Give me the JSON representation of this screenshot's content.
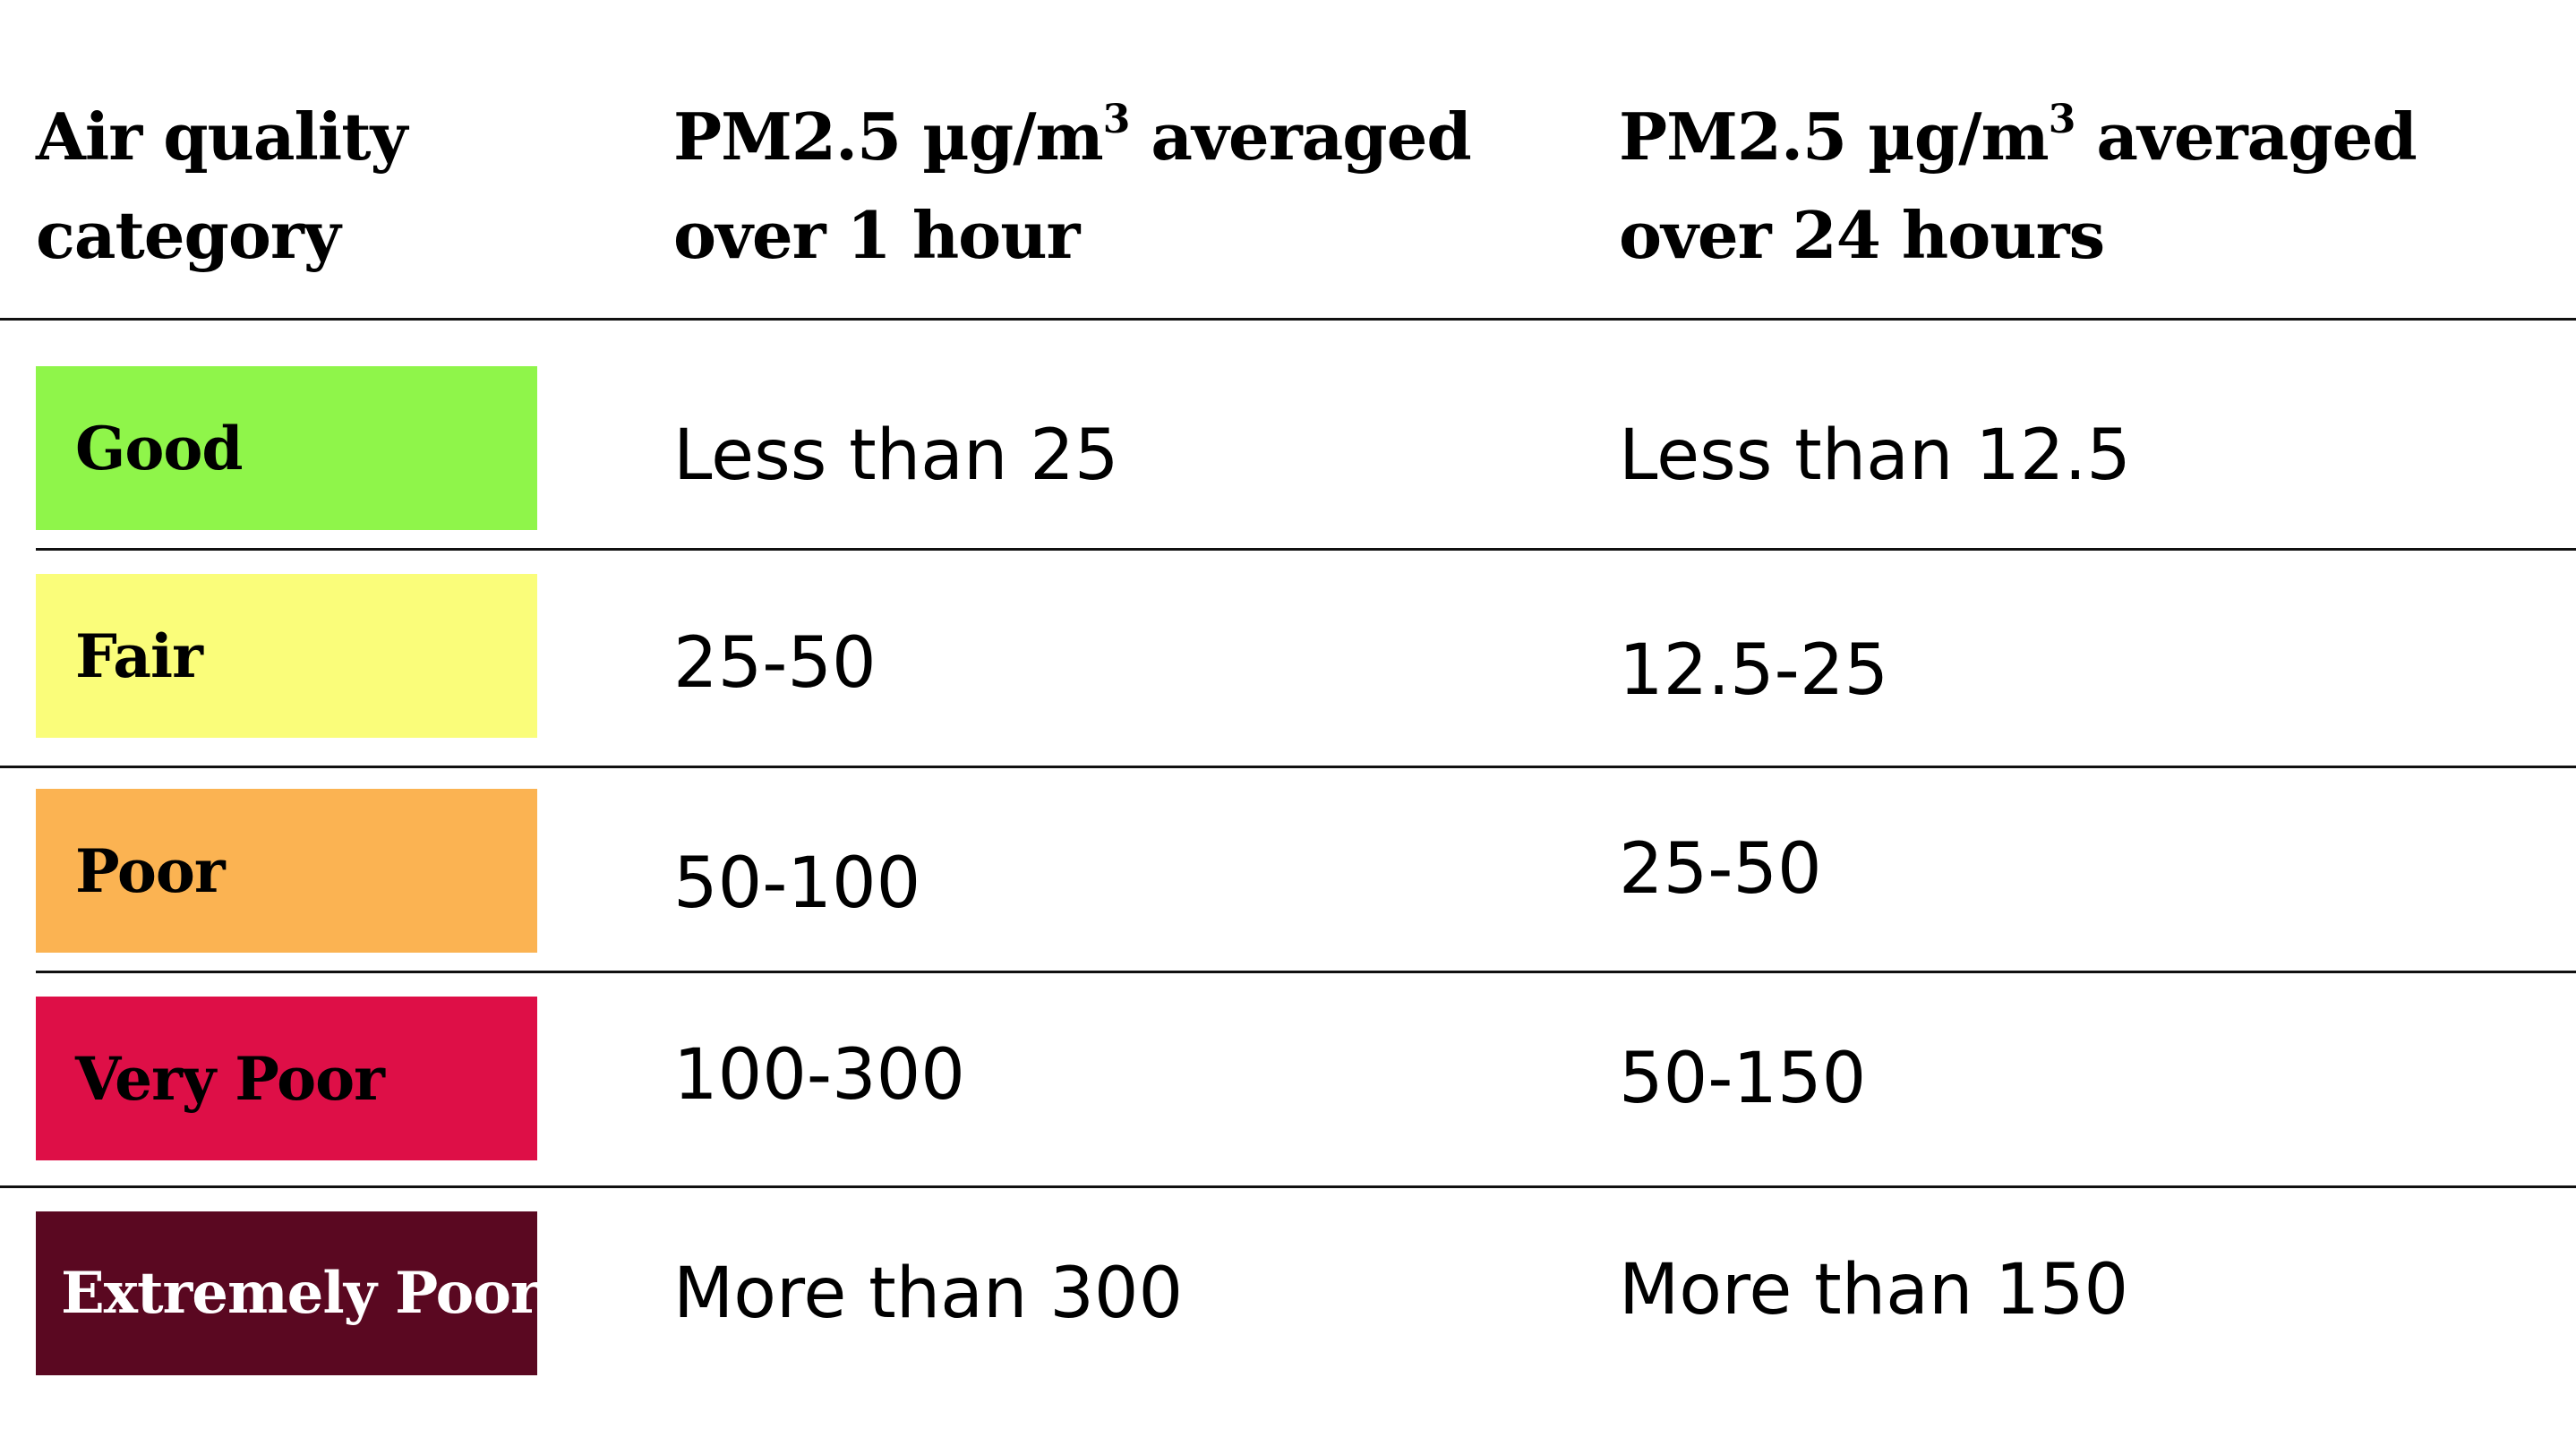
{
  "table": {
    "headers": [
      {
        "line1": "Air quality",
        "line2": "category"
      },
      {
        "line1_pre": "PM2.5 µg/m",
        "sup": "3",
        "line1_post": " averaged",
        "line2": "over 1 hour"
      },
      {
        "line1_pre": "PM2.5 µg/m",
        "sup": "3",
        "line1_post": " averaged",
        "line2": "over 24 hours"
      }
    ],
    "rows": [
      {
        "category": "Good",
        "color": "#8ff54a",
        "hour1": "Less than 25",
        "hour24": "Less than 12.5"
      },
      {
        "category": "Fair",
        "color": "#fafd7a",
        "hour1": "25-50",
        "hour24": "12.5-25"
      },
      {
        "category": "Poor",
        "color": "#fbb352",
        "hour1": "50-100",
        "hour24": "25-50"
      },
      {
        "category": "Very Poor",
        "color": "#de0f47",
        "hour1": "100-300",
        "hour24": "50-150"
      },
      {
        "category": "Extremely Poor",
        "color": "#5a0821",
        "hour1": "More than 300",
        "hour24": "More than 150"
      }
    ]
  }
}
